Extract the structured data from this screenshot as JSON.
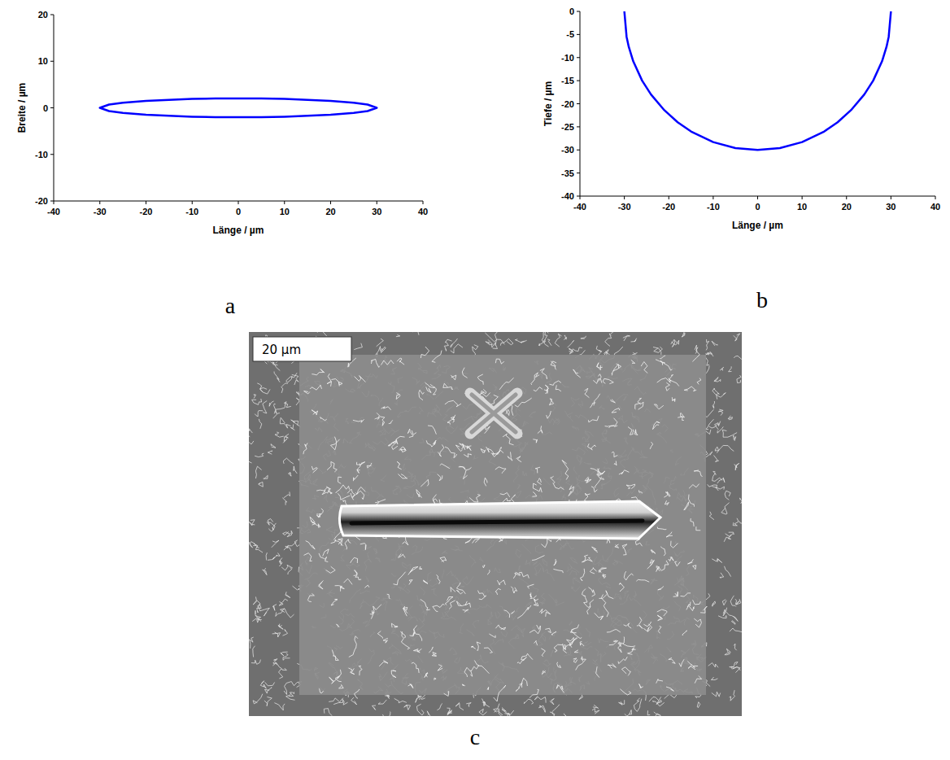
{
  "chart_data": [
    {
      "type": "line",
      "x_label": "Länge / µm",
      "y_label": "Breite / µm",
      "x": [
        -30,
        -28,
        -25,
        -20,
        -15,
        -10,
        -5,
        0,
        5,
        10,
        15,
        20,
        25,
        28,
        30,
        28,
        25,
        20,
        15,
        10,
        5,
        0,
        -5,
        -10,
        -15,
        -20,
        -25,
        -28,
        -30
      ],
      "series": [
        {
          "color": "#0000ff",
          "values": [
            0,
            0.7,
            1.1,
            1.5,
            1.7,
            1.9,
            2,
            2,
            2,
            1.9,
            1.7,
            1.5,
            1.1,
            0.7,
            0,
            -0.7,
            -1.1,
            -1.5,
            -1.7,
            -1.9,
            -2,
            -2,
            -2,
            -1.9,
            -1.7,
            -1.5,
            -1.1,
            -0.7,
            0
          ]
        }
      ],
      "xlim": [
        -40,
        40
      ],
      "xticks": [
        -40,
        -30,
        -20,
        -10,
        0,
        10,
        20,
        30,
        40
      ],
      "ylim": [
        -20,
        20
      ],
      "yticks": [
        -20,
        -10,
        0,
        10,
        20
      ],
      "grid": false
    },
    {
      "type": "line",
      "x_label": "Länge / µm",
      "y_label": "Tiefe / µm",
      "x": [
        -30,
        -29.5,
        -29,
        -28,
        -26,
        -24,
        -21,
        -18,
        -15,
        -10,
        -5,
        0,
        5,
        10,
        15,
        18,
        21,
        24,
        26,
        28,
        29,
        29.5,
        30
      ],
      "series": [
        {
          "color": "#0000ff",
          "values": [
            0,
            -5.5,
            -7.7,
            -10.8,
            -15,
            -18,
            -21.4,
            -24,
            -26,
            -28.3,
            -29.6,
            -30,
            -29.6,
            -28.3,
            -26,
            -24,
            -21.4,
            -18,
            -15,
            -10.8,
            -7.7,
            -5.5,
            0
          ]
        }
      ],
      "xlim": [
        -40,
        40
      ],
      "xticks": [
        -40,
        -30,
        -20,
        -10,
        0,
        10,
        20,
        30,
        40
      ],
      "ylim": [
        -40,
        0
      ],
      "yticks": [
        -40,
        -35,
        -30,
        -25,
        -20,
        -15,
        -10,
        -5,
        0
      ],
      "grid": false
    }
  ],
  "figure": {
    "panel_labels": [
      "a",
      "b",
      "c"
    ],
    "micrograph": {
      "scale_bar": "20 µm"
    }
  }
}
